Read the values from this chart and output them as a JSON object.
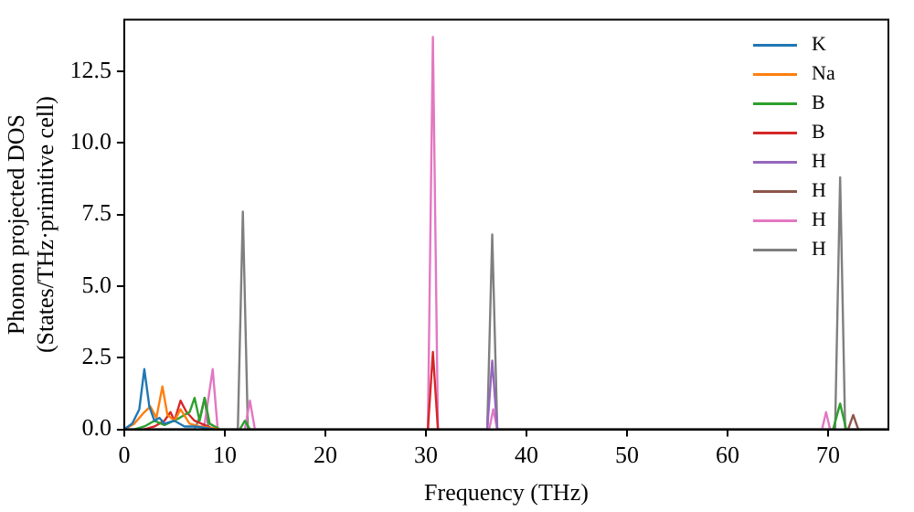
{
  "chart_data": {
    "type": "line",
    "xlabel": "Frequency (THz)",
    "ylabel": "Phonon projected DOS\n(States/THz·primitive cell)",
    "xlim": [
      0,
      76
    ],
    "ylim": [
      0,
      14.3
    ],
    "xticks": [
      0,
      10,
      20,
      30,
      40,
      50,
      60,
      70
    ],
    "yticks": [
      {
        "value": 0,
        "label": "0.0"
      },
      {
        "value": 2.5,
        "label": "2.5"
      },
      {
        "value": 5,
        "label": "5.0"
      },
      {
        "value": 7.5,
        "label": "7.5"
      },
      {
        "value": 10,
        "label": "10.0"
      },
      {
        "value": 12.5,
        "label": "12.5"
      }
    ],
    "legend": "top right",
    "grid": false,
    "marker": "none",
    "line_style": "solid",
    "series": [
      {
        "name": "K",
        "color": "#1f77b4",
        "x": [
          0,
          0.8,
          1.5,
          2.0,
          2.5,
          3.0,
          3.5,
          4.0,
          5.0,
          6.0,
          7.0,
          8.0,
          9.0
        ],
        "values": [
          0,
          0.2,
          0.7,
          2.1,
          0.8,
          0.3,
          0.4,
          0.2,
          0.3,
          0.1,
          0.1,
          0.05,
          0
        ]
      },
      {
        "name": "Na",
        "color": "#ff7f0e",
        "x": [
          0,
          1.0,
          2.0,
          2.6,
          3.2,
          3.8,
          4.3,
          5.0,
          5.6,
          6.5,
          7.5,
          8.5,
          9.5
        ],
        "values": [
          0,
          0.2,
          0.6,
          0.8,
          0.4,
          1.5,
          0.5,
          0.3,
          0.7,
          0.2,
          0.1,
          0.05,
          0
        ]
      },
      {
        "name": "B",
        "color": "#2ca02c",
        "x": [
          1.0,
          2.0,
          3.0,
          4.0,
          5.5,
          6.5,
          7.0,
          7.5,
          8.0,
          8.5,
          9.5,
          11.5,
          12.0,
          12.5,
          70.5,
          71.2,
          71.8
        ],
        "values": [
          0,
          0.1,
          0.3,
          0.15,
          0.4,
          0.6,
          1.1,
          0.3,
          1.1,
          0.2,
          0,
          0,
          0.3,
          0,
          0,
          0.9,
          0
        ]
      },
      {
        "name": "B",
        "color": "#d62728",
        "x": [
          2.0,
          3.0,
          4.0,
          4.6,
          5.0,
          5.6,
          6.2,
          7.0,
          8.0,
          9.0,
          30.2,
          30.7,
          31.2
        ],
        "values": [
          0,
          0.1,
          0.3,
          0.6,
          0.3,
          1.0,
          0.6,
          0.3,
          0.15,
          0,
          0,
          2.7,
          0
        ]
      },
      {
        "name": "H",
        "color": "#9467bd",
        "x": [
          36.1,
          36.6,
          37.1
        ],
        "values": [
          0,
          2.4,
          0
        ]
      },
      {
        "name": "H",
        "color": "#8c564b",
        "x": [
          72.0,
          72.5,
          73.0
        ],
        "values": [
          0,
          0.5,
          0
        ]
      },
      {
        "name": "H",
        "color": "#e377c2",
        "x": [
          7.5,
          8.0,
          8.8,
          9.3,
          12.0,
          12.5,
          13.0,
          30.2,
          30.7,
          31.2,
          36.3,
          36.7,
          37.1,
          69.4,
          69.8,
          70.2
        ],
        "values": [
          0,
          0.2,
          2.1,
          0,
          0,
          1.0,
          0,
          0,
          13.7,
          0,
          0,
          0.7,
          0,
          0,
          0.6,
          0
        ]
      },
      {
        "name": "H",
        "color": "#7f7f7f",
        "x": [
          0,
          7.0,
          7.6,
          8.0,
          8.4,
          11.3,
          11.8,
          12.3,
          36.1,
          36.6,
          37.1,
          70.7,
          71.2,
          71.7,
          76
        ],
        "values": [
          0,
          0,
          0.5,
          1.1,
          0,
          0,
          7.6,
          0,
          0,
          6.8,
          0,
          0,
          8.8,
          0,
          0
        ]
      }
    ]
  }
}
